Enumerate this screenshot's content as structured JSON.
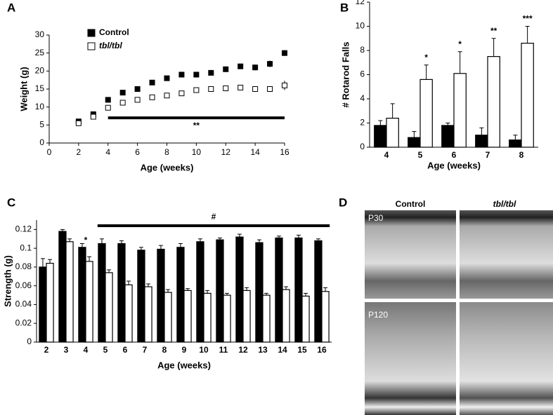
{
  "chart_data": [
    {
      "type": "scatter",
      "panel": "A",
      "xlabel": "Age (weeks)",
      "ylabel": "Weight (g)",
      "x": [
        2,
        3,
        4,
        5,
        6,
        7,
        8,
        9,
        10,
        11,
        12,
        13,
        14,
        15,
        16
      ],
      "series": [
        {
          "name": "Control",
          "color": "#000000",
          "fill": "#000000",
          "values": [
            6,
            8,
            12,
            14,
            15,
            16.8,
            18,
            19,
            19,
            19.5,
            20.5,
            21.3,
            21,
            22,
            25
          ],
          "errors": [
            0.7,
            0.6,
            0.5,
            0.5,
            0.5,
            0.6,
            0.6,
            0.8,
            0.8,
            0.7,
            0.7,
            0.7,
            0.8,
            0.9,
            0.8
          ]
        },
        {
          "name": "tbl/tbl",
          "color": "#000000",
          "fill": "#ffffff",
          "values": [
            5.5,
            7.3,
            9.8,
            11.2,
            12,
            12.7,
            13.2,
            13.8,
            14.7,
            15,
            15.2,
            15.4,
            15,
            15,
            16
          ],
          "errors": [
            0.8,
            0.7,
            0.6,
            0.5,
            0.5,
            0.5,
            0.6,
            0.7,
            0.7,
            0.7,
            0.7,
            0.7,
            0.8,
            0.8,
            1.3
          ]
        }
      ],
      "xlim": [
        0,
        16
      ],
      "xticks": [
        0,
        2,
        4,
        6,
        8,
        10,
        12,
        14,
        16
      ],
      "ylim": [
        0,
        30
      ],
      "yticks": [
        0,
        5,
        10,
        15,
        20,
        25,
        30
      ],
      "annotations": [
        {
          "text": "**",
          "from": 4,
          "to": 16,
          "y": 7
        }
      ]
    },
    {
      "type": "bar",
      "panel": "B",
      "xlabel": "Age (weeks)",
      "ylabel": "# Rotarod Falls",
      "categories": [
        "4",
        "5",
        "6",
        "7",
        "8"
      ],
      "series": [
        {
          "color": "#000000",
          "fill": "#000000",
          "values": [
            1.8,
            0.8,
            1.8,
            1.0,
            0.6
          ],
          "errors": [
            0.4,
            0.5,
            0.2,
            0.6,
            0.4
          ]
        },
        {
          "color": "#000000",
          "fill": "#ffffff",
          "values": [
            2.4,
            5.6,
            6.1,
            7.5,
            8.6
          ],
          "errors": [
            1.2,
            1.2,
            1.8,
            1.5,
            1.4
          ]
        }
      ],
      "ylim": [
        0,
        12
      ],
      "yticks": [
        0,
        2,
        4,
        6,
        8,
        10,
        12
      ],
      "markers": [
        null,
        "*",
        "*",
        "**",
        "***"
      ]
    },
    {
      "type": "bar",
      "panel": "C",
      "xlabel": "Age (weeks)",
      "ylabel": "Strength (g)",
      "categories": [
        "2",
        "3",
        "4",
        "5",
        "6",
        "7",
        "8",
        "9",
        "10",
        "11",
        "12",
        "13",
        "14",
        "15",
        "16"
      ],
      "series": [
        {
          "color": "#000000",
          "fill": "#000000",
          "values": [
            0.08,
            0.118,
            0.101,
            0.105,
            0.105,
            0.098,
            0.099,
            0.101,
            0.107,
            0.109,
            0.112,
            0.106,
            0.111,
            0.111,
            0.108
          ],
          "errors": [
            0.009,
            0.002,
            0.004,
            0.005,
            0.003,
            0.003,
            0.004,
            0.004,
            0.003,
            0.002,
            0.003,
            0.003,
            0.002,
            0.003,
            0.002
          ]
        },
        {
          "color": "#000000",
          "fill": "#ffffff",
          "values": [
            0.084,
            0.107,
            0.086,
            0.074,
            0.061,
            0.059,
            0.053,
            0.055,
            0.052,
            0.05,
            0.055,
            0.05,
            0.056,
            0.049,
            0.054
          ],
          "errors": [
            0.004,
            0.003,
            0.005,
            0.003,
            0.004,
            0.003,
            0.003,
            0.002,
            0.003,
            0.002,
            0.003,
            0.002,
            0.003,
            0.003,
            0.004
          ]
        }
      ],
      "ylim": [
        0,
        0.13
      ],
      "yticks": [
        0,
        0.02,
        0.04,
        0.06,
        0.08,
        0.1,
        0.12
      ],
      "annotations": [
        {
          "text": "*",
          "from": "4",
          "to": "4",
          "y": 0.108
        },
        {
          "text": "#",
          "from": "5",
          "to": "16",
          "y": 0.124
        }
      ]
    }
  ],
  "panel_d": {
    "label": "D",
    "columns": [
      "Control",
      "tbl/tbl"
    ],
    "rows": [
      "P30",
      "P120"
    ]
  }
}
